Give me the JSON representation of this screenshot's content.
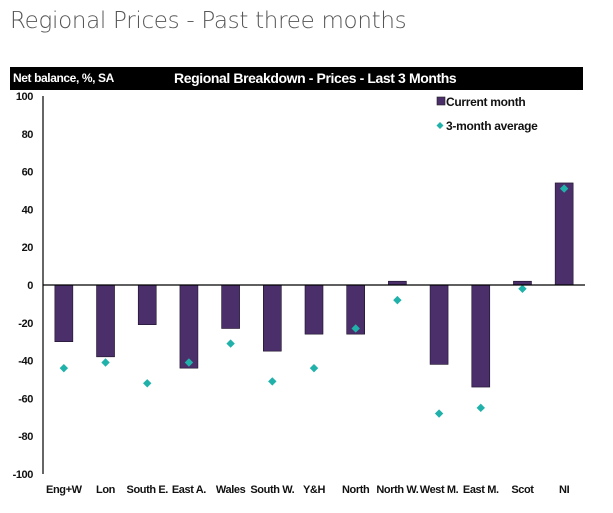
{
  "page": {
    "title": "Regional Prices - Past three months"
  },
  "chart_data": {
    "type": "bar",
    "title": "Regional Breakdown - Prices - Last 3 Months",
    "ylabel": "Net balance, %, SA",
    "xlabel": "",
    "ylim": [
      -100,
      100
    ],
    "yticks": [
      100,
      80,
      60,
      40,
      20,
      0,
      -20,
      -40,
      -60,
      -80,
      -100
    ],
    "grid": false,
    "legend_position": "top-right",
    "categories": [
      "Eng+W",
      "Lon",
      "South E.",
      "East A.",
      "Wales",
      "South W.",
      "Y&H",
      "North",
      "North W.",
      "West M.",
      "East M.",
      "Scot",
      "NI"
    ],
    "series": [
      {
        "name": "Current month",
        "type": "bar",
        "color": "#4b2f6b",
        "values": [
          -30,
          -38,
          -21,
          -44,
          -23,
          -35,
          -26,
          -26,
          2,
          -42,
          -54,
          2,
          54
        ]
      },
      {
        "name": "3-month average",
        "type": "scatter",
        "marker": "diamond",
        "color": "#20b2aa",
        "values": [
          -44,
          -41,
          -52,
          -41,
          -31,
          -51,
          -44,
          -23,
          -8,
          -68,
          -65,
          -2,
          51
        ]
      }
    ]
  }
}
